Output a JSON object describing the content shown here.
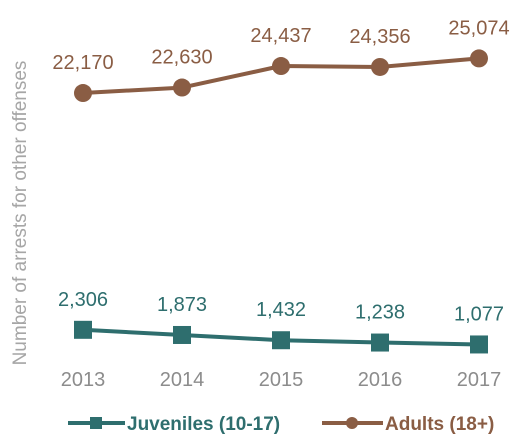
{
  "chart_data": {
    "type": "line",
    "title": "",
    "xlabel": "",
    "ylabel": "Number of arrests for other offenses",
    "categories": [
      "2013",
      "2014",
      "2015",
      "2016",
      "2017"
    ],
    "ylim": [
      0,
      27000
    ],
    "grid": false,
    "legend_position": "bottom",
    "series": [
      {
        "name": "Juveniles (10-17)",
        "marker": "square",
        "color": "#2e6e6e",
        "values": [
          2306,
          1873,
          1432,
          1238,
          1077
        ],
        "labels": [
          "2,306",
          "1,873",
          "1,432",
          "1,238",
          "1,077"
        ]
      },
      {
        "name": "Adults (18+)",
        "marker": "circle",
        "color": "#8a5d44",
        "values": [
          22170,
          22630,
          24437,
          24356,
          25074
        ],
        "labels": [
          "22,170",
          "22,630",
          "24,437",
          "24,356",
          "25,074"
        ]
      }
    ]
  }
}
